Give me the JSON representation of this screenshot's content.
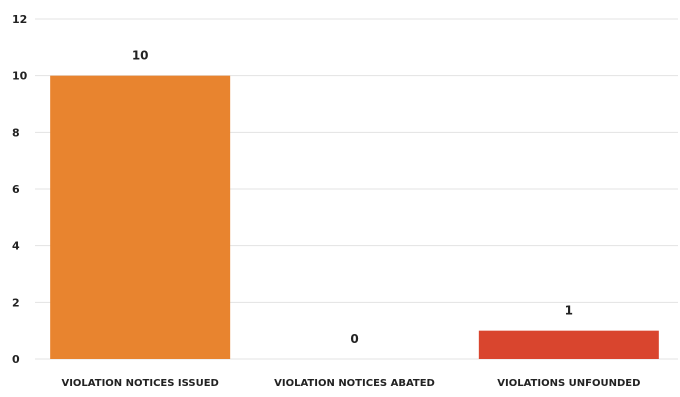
{
  "chart_data": {
    "type": "bar",
    "categories": [
      "VIOLATION NOTICES ISSUED",
      "VIOLATION NOTICES ABATED",
      "VIOLATIONS UNFOUNDED"
    ],
    "values": [
      10,
      0,
      1
    ],
    "data_labels": [
      "10",
      "0",
      "1"
    ],
    "colors": [
      "#e8842f",
      "#e8842f",
      "#d9452e"
    ],
    "title": "",
    "xlabel": "",
    "ylabel": "",
    "ylim": [
      0,
      12
    ],
    "yticks": [
      0,
      2,
      4,
      6,
      8,
      10,
      12
    ],
    "ytick_labels": [
      "0",
      "2",
      "4",
      "6",
      "8",
      "10",
      "12"
    ],
    "grid": true,
    "legend": "none"
  }
}
